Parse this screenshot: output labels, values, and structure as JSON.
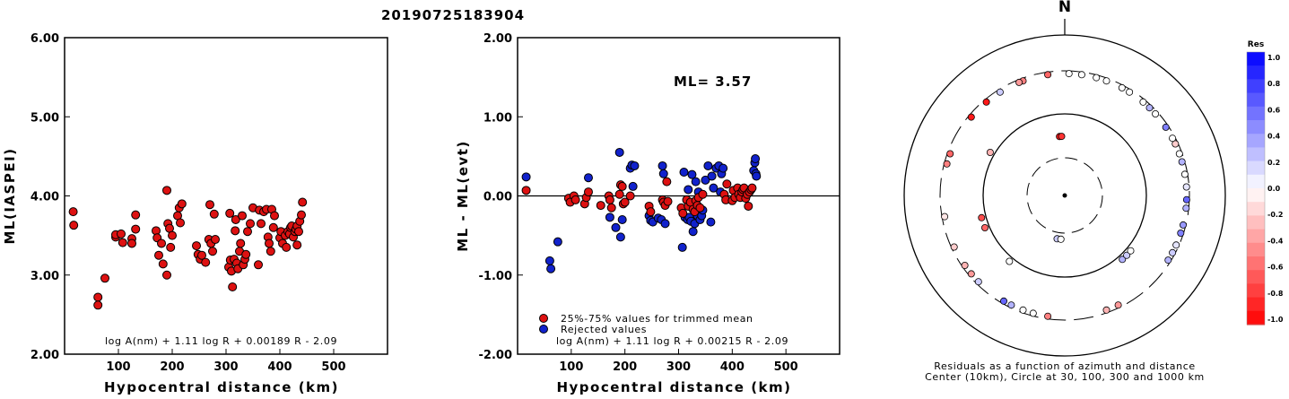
{
  "title": "20190725183904",
  "chart_data": [
    {
      "type": "scatter",
      "xlabel": "Hypocentral distance (km)",
      "ylabel": "ML(IASPEI)",
      "xlim": [
        0,
        600
      ],
      "ylim": [
        2.0,
        6.0
      ],
      "xticks": [
        100,
        200,
        300,
        400,
        500
      ],
      "yticks": [
        "2.00",
        "3.00",
        "4.00",
        "5.00",
        "6.00"
      ],
      "formula": "log A(nm) + 1.11 log R + 0.00189 R - 2.09",
      "color": "#dd1111",
      "points": [
        [
          16,
          3.8
        ],
        [
          17,
          3.63
        ],
        [
          62,
          2.72
        ],
        [
          62,
          2.62
        ],
        [
          75,
          2.96
        ],
        [
          95,
          3.48
        ],
        [
          95,
          3.51
        ],
        [
          105,
          3.52
        ],
        [
          108,
          3.41
        ],
        [
          125,
          3.46
        ],
        [
          125,
          3.4
        ],
        [
          132,
          3.58
        ],
        [
          132,
          3.76
        ],
        [
          170,
          3.56
        ],
        [
          172,
          3.47
        ],
        [
          175,
          3.25
        ],
        [
          180,
          3.4
        ],
        [
          183,
          3.14
        ],
        [
          190,
          3.0
        ],
        [
          190,
          4.07
        ],
        [
          192,
          3.65
        ],
        [
          195,
          3.59
        ],
        [
          197,
          3.35
        ],
        [
          200,
          3.5
        ],
        [
          210,
          3.75
        ],
        [
          213,
          3.85
        ],
        [
          215,
          3.66
        ],
        [
          218,
          3.9
        ],
        [
          245,
          3.37
        ],
        [
          248,
          3.26
        ],
        [
          252,
          3.2
        ],
        [
          255,
          3.25
        ],
        [
          262,
          3.16
        ],
        [
          268,
          3.45
        ],
        [
          270,
          3.89
        ],
        [
          272,
          3.4
        ],
        [
          275,
          3.3
        ],
        [
          278,
          3.77
        ],
        [
          280,
          3.45
        ],
        [
          305,
          3.1
        ],
        [
          307,
          3.78
        ],
        [
          308,
          3.19
        ],
        [
          310,
          3.05
        ],
        [
          312,
          2.85
        ],
        [
          315,
          3.2
        ],
        [
          317,
          3.56
        ],
        [
          318,
          3.7
        ],
        [
          320,
          3.15
        ],
        [
          322,
          3.08
        ],
        [
          325,
          3.3
        ],
        [
          327,
          3.4
        ],
        [
          330,
          3.75
        ],
        [
          332,
          3.13
        ],
        [
          335,
          3.2
        ],
        [
          337,
          3.26
        ],
        [
          340,
          3.55
        ],
        [
          345,
          3.65
        ],
        [
          350,
          3.85
        ],
        [
          360,
          3.13
        ],
        [
          362,
          3.82
        ],
        [
          365,
          3.65
        ],
        [
          370,
          3.8
        ],
        [
          375,
          3.83
        ],
        [
          378,
          3.48
        ],
        [
          380,
          3.4
        ],
        [
          383,
          3.3
        ],
        [
          385,
          3.83
        ],
        [
          388,
          3.6
        ],
        [
          390,
          3.75
        ],
        [
          400,
          3.47
        ],
        [
          402,
          3.55
        ],
        [
          405,
          3.4
        ],
        [
          410,
          3.5
        ],
        [
          412,
          3.35
        ],
        [
          415,
          3.55
        ],
        [
          418,
          3.52
        ],
        [
          420,
          3.6
        ],
        [
          422,
          3.62
        ],
        [
          425,
          3.48
        ],
        [
          428,
          3.55
        ],
        [
          430,
          3.58
        ],
        [
          432,
          3.38
        ],
        [
          432,
          3.62
        ],
        [
          435,
          3.55
        ],
        [
          437,
          3.68
        ],
        [
          440,
          3.76
        ],
        [
          442,
          3.92
        ]
      ]
    },
    {
      "type": "scatter",
      "xlabel": "Hypocentral distance (km)",
      "ylabel": "ML - ML(evt)",
      "xlim": [
        0,
        600
      ],
      "ylim": [
        -2.0,
        2.0
      ],
      "xticks": [
        100,
        200,
        300,
        400,
        500
      ],
      "yticks": [
        "-2.00",
        "-1.00",
        "0.00",
        "1.00",
        "2.00"
      ],
      "annotation": "ML= 3.57",
      "formula": "log A(nm) + 1.11 log R + 0.00215 R - 2.09",
      "legend": [
        "25%-75% values for trimmed mean",
        "Rejected values"
      ],
      "series_colors": [
        "#dd1111",
        "#1122cc"
      ],
      "trimmed": [
        [
          16,
          0.07
        ],
        [
          95,
          -0.03
        ],
        [
          98,
          -0.08
        ],
        [
          105,
          0.0
        ],
        [
          108,
          -0.05
        ],
        [
          125,
          -0.1
        ],
        [
          128,
          -0.02
        ],
        [
          132,
          0.05
        ],
        [
          155,
          -0.12
        ],
        [
          170,
          0.0
        ],
        [
          172,
          -0.05
        ],
        [
          175,
          -0.15
        ],
        [
          190,
          0.02
        ],
        [
          192,
          0.14
        ],
        [
          195,
          0.12
        ],
        [
          197,
          -0.1
        ],
        [
          200,
          -0.08
        ],
        [
          210,
          0.0
        ],
        [
          245,
          -0.13
        ],
        [
          248,
          -0.2
        ],
        [
          270,
          -0.05
        ],
        [
          272,
          -0.08
        ],
        [
          275,
          -0.12
        ],
        [
          278,
          0.18
        ],
        [
          280,
          -0.07
        ],
        [
          305,
          -0.15
        ],
        [
          308,
          -0.22
        ],
        [
          315,
          -0.05
        ],
        [
          318,
          -0.13
        ],
        [
          322,
          -0.08
        ],
        [
          327,
          -0.17
        ],
        [
          330,
          -0.2
        ],
        [
          332,
          -0.06
        ],
        [
          335,
          -0.12
        ],
        [
          337,
          -0.02
        ],
        [
          340,
          -0.15
        ],
        [
          345,
          0.02
        ],
        [
          385,
          0.02
        ],
        [
          388,
          -0.05
        ],
        [
          390,
          0.15
        ],
        [
          400,
          -0.06
        ],
        [
          402,
          0.07
        ],
        [
          405,
          -0.02
        ],
        [
          410,
          0.1
        ],
        [
          412,
          0.02
        ],
        [
          415,
          -0.02
        ],
        [
          418,
          0.05
        ],
        [
          420,
          0.08
        ],
        [
          422,
          0.1
        ],
        [
          425,
          -0.03
        ],
        [
          428,
          0.02
        ],
        [
          430,
          -0.13
        ],
        [
          432,
          0.05
        ],
        [
          435,
          0.08
        ],
        [
          437,
          0.1
        ]
      ],
      "rejected": [
        [
          16,
          0.24
        ],
        [
          60,
          -0.82
        ],
        [
          62,
          -0.92
        ],
        [
          75,
          -0.58
        ],
        [
          132,
          0.23
        ],
        [
          172,
          -0.27
        ],
        [
          183,
          -0.4
        ],
        [
          190,
          0.55
        ],
        [
          192,
          -0.52
        ],
        [
          195,
          -0.3
        ],
        [
          210,
          0.35
        ],
        [
          213,
          0.39
        ],
        [
          215,
          0.12
        ],
        [
          218,
          0.38
        ],
        [
          245,
          -0.25
        ],
        [
          248,
          -0.31
        ],
        [
          252,
          -0.33
        ],
        [
          262,
          -0.28
        ],
        [
          268,
          -0.3
        ],
        [
          270,
          0.38
        ],
        [
          272,
          0.28
        ],
        [
          275,
          -0.35
        ],
        [
          307,
          -0.65
        ],
        [
          310,
          0.3
        ],
        [
          312,
          -0.27
        ],
        [
          317,
          -0.3
        ],
        [
          318,
          0.08
        ],
        [
          320,
          -0.27
        ],
        [
          323,
          -0.32
        ],
        [
          325,
          0.27
        ],
        [
          327,
          -0.45
        ],
        [
          330,
          -0.35
        ],
        [
          332,
          0.18
        ],
        [
          335,
          -0.25
        ],
        [
          337,
          0.05
        ],
        [
          340,
          -0.3
        ],
        [
          343,
          -0.25
        ],
        [
          345,
          -0.18
        ],
        [
          350,
          0.2
        ],
        [
          355,
          0.38
        ],
        [
          360,
          -0.33
        ],
        [
          362,
          0.25
        ],
        [
          365,
          0.1
        ],
        [
          370,
          0.35
        ],
        [
          375,
          0.38
        ],
        [
          378,
          0.05
        ],
        [
          380,
          0.28
        ],
        [
          383,
          0.35
        ],
        [
          440,
          0.32
        ],
        [
          442,
          0.42
        ],
        [
          443,
          0.47
        ],
        [
          444,
          0.28
        ],
        [
          445,
          0.25
        ]
      ]
    },
    {
      "type": "polar-scatter",
      "north_label": "N",
      "caption": "Residuals as a function of azimuth and distance",
      "subcaption": "Center (10km), Circle at 30, 100, 300 and 1000 km",
      "colorbar": {
        "title": "Res",
        "labels": [
          "1.0",
          "0.8",
          "0.6",
          "0.4",
          "0.2",
          "0.0",
          "-0.2",
          "-0.4",
          "-0.6",
          "-0.8",
          "-1.0"
        ]
      },
      "stations": [
        [
          310,
          1500,
          -0.9
        ],
        [
          290,
          1500,
          -0.6
        ],
        [
          285,
          1500,
          -0.5
        ],
        [
          260,
          1500,
          -0.1
        ],
        [
          245,
          1500,
          -0.2
        ],
        [
          235,
          1500,
          -0.3
        ],
        [
          230,
          1500,
          -0.4
        ],
        [
          188,
          1500,
          -0.5
        ],
        [
          160,
          1500,
          -0.3
        ],
        [
          154,
          1500,
          -0.4
        ],
        [
          122,
          1500,
          0.3
        ],
        [
          118,
          1500,
          0.2
        ],
        [
          114,
          1500,
          0.1
        ],
        [
          108,
          1500,
          0.5
        ],
        [
          104,
          1500,
          0.4
        ],
        [
          96,
          1500,
          0.3
        ],
        [
          92,
          1500,
          0.6
        ],
        [
          86,
          1500,
          0.1
        ],
        [
          80,
          1500,
          0.0
        ],
        [
          74,
          1500,
          0.3
        ],
        [
          70,
          1500,
          0.0
        ],
        [
          65,
          1500,
          -0.2
        ],
        [
          62,
          1500,
          0.0
        ],
        [
          56,
          1500,
          0.5
        ],
        [
          48,
          1500,
          0.0
        ],
        [
          44,
          1500,
          0.3
        ],
        [
          40,
          1500,
          0.0
        ],
        [
          32,
          1500,
          0.0
        ],
        [
          28,
          1500,
          0.0
        ],
        [
          20,
          1500,
          0.0
        ],
        [
          15,
          1500,
          0.0
        ],
        [
          8,
          1500,
          0.0
        ],
        [
          2,
          1500,
          0.0
        ],
        [
          352,
          1500,
          -0.6
        ],
        [
          340,
          1500,
          -0.5
        ],
        [
          338,
          1500,
          -0.4
        ],
        [
          328,
          1500,
          0.2
        ],
        [
          210,
          1500,
          0.6
        ],
        [
          206,
          1500,
          0.3
        ],
        [
          200,
          1500,
          0.0
        ],
        [
          195,
          1500,
          0.0
        ],
        [
          225,
          1500,
          0.2
        ],
        [
          320,
          1500,
          -0.9
        ],
        [
          300,
          1000,
          -0.3
        ],
        [
          255,
          1000,
          -0.7
        ],
        [
          248,
          1000,
          -0.6
        ],
        [
          138,
          1000,
          0.3
        ],
        [
          134,
          1000,
          0.2
        ],
        [
          130,
          1000,
          0.0
        ],
        [
          220,
          1000,
          0.0
        ],
        [
          355,
          150,
          -0.9
        ],
        [
          357,
          150,
          -0.8
        ],
        [
          190,
          40,
          0.2
        ],
        [
          185,
          40,
          0.0
        ]
      ]
    }
  ]
}
